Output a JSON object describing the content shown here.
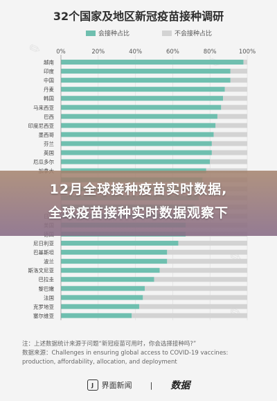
{
  "chart_data": {
    "type": "bar",
    "orientation": "horizontal",
    "stacked": true,
    "title": "32个国家及地区新冠疫苗接种调研",
    "categories": [
      "越南",
      "印度",
      "中国",
      "丹麦",
      "韩国",
      "马来西亚",
      "巴西",
      "印度尼西亚",
      "墨西哥",
      "芬兰",
      "英国",
      "厄瓜多尔",
      "加拿大",
      "",
      "",
      "",
      "",
      "日本",
      "美国",
      "德国",
      "尼日利亚",
      "巴基斯坦",
      "波兰",
      "斯洛文尼亚",
      "巴拉圭",
      "黎巴嫩",
      "法国",
      "克罗地亚",
      "塞尔维亚"
    ],
    "series": [
      {
        "name": "会接种占比",
        "color": "#6fbfaf",
        "values": [
          98,
          91,
          91,
          88,
          87,
          86,
          84,
          83,
          82,
          81,
          81,
          80,
          78,
          76,
          75,
          74,
          72,
          68,
          67,
          67,
          63,
          57,
          57,
          53,
          50,
          45,
          44,
          42,
          38
        ]
      },
      {
        "name": "不会接种占比",
        "color": "#d3d3d3",
        "values": [
          2,
          9,
          9,
          12,
          13,
          14,
          16,
          17,
          18,
          19,
          19,
          20,
          22,
          24,
          25,
          26,
          28,
          32,
          33,
          33,
          37,
          43,
          43,
          47,
          50,
          55,
          56,
          58,
          62
        ]
      }
    ],
    "xlim": [
      0,
      100
    ],
    "xticks": [
      "0%",
      "20%",
      "40%",
      "60%",
      "80%",
      "100%"
    ],
    "grid": true,
    "legend": "top-center"
  },
  "headline": {
    "line1": "12月全球接种疫苗实时数据,",
    "line2": "全球疫苗接种实时数据观察下"
  },
  "notes": {
    "line1": "注：上述数据统计来源于问题“新冠疫苗可用时，你会选择接种吗?”",
    "line2": "数据来源：Challenges in ensuring global access to COVID-19 vaccines:",
    "line3": "production, affordability, allocation, and deployment"
  },
  "footer": {
    "brand1_logo": "J",
    "brand1": "界面新闻",
    "divider": "|",
    "brand2": "数据"
  }
}
